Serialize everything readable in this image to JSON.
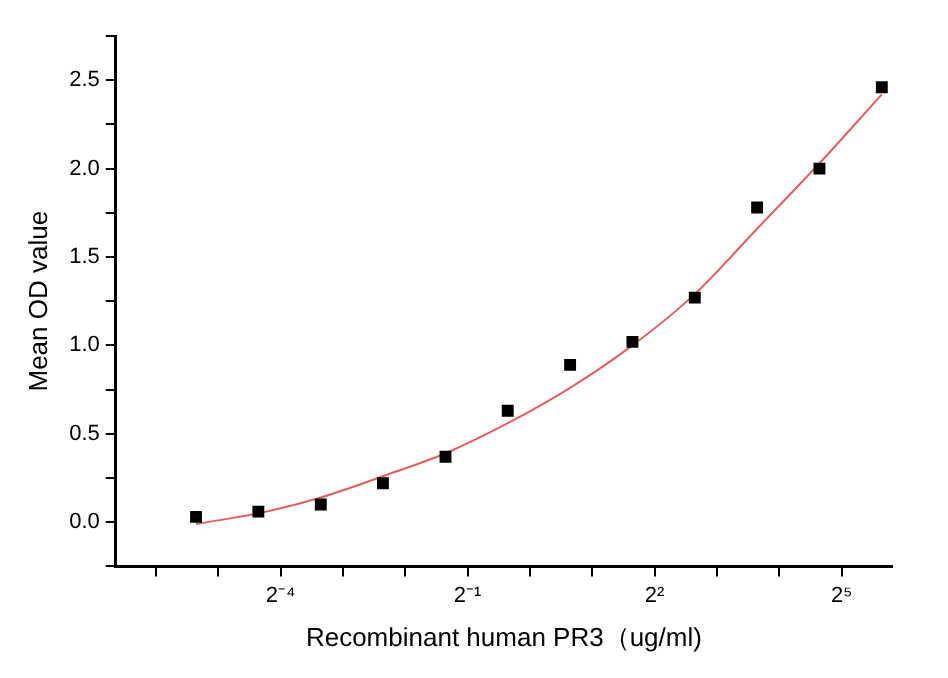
{
  "chart_data": {
    "type": "scatter",
    "xlabel": "Recombinant human PR3（ug/ml)",
    "ylabel": "Mean OD value",
    "log": "x",
    "grid": false,
    "legend": false,
    "marker": "square",
    "xlim": [
      0.01,
      56
    ],
    "xticks": [
      {
        "value": 0.015625,
        "label": null
      },
      {
        "value": 0.03125,
        "label": null
      },
      {
        "value": 0.0625,
        "label": "2⁻⁴"
      },
      {
        "value": 0.125,
        "label": null
      },
      {
        "value": 0.25,
        "label": null
      },
      {
        "value": 0.5,
        "label": "2⁻¹"
      },
      {
        "value": 1,
        "label": null
      },
      {
        "value": 2,
        "label": null
      },
      {
        "value": 4,
        "label": "2²"
      },
      {
        "value": 8,
        "label": null
      },
      {
        "value": 16,
        "label": null
      },
      {
        "value": 32,
        "label": "2⁵"
      }
    ],
    "ylim": [
      -0.25,
      2.75
    ],
    "yticks": [
      {
        "value": -0.25,
        "label": null
      },
      {
        "value": 0,
        "label": "0.0"
      },
      {
        "value": 0.25,
        "label": null
      },
      0.5,
      {
        "value": 0.75,
        "label": null
      },
      {
        "value": 1,
        "label": "1.0"
      },
      {
        "value": 1.25,
        "label": null
      },
      1.5,
      {
        "value": 1.75,
        "label": null
      },
      {
        "value": 2,
        "label": "2.0"
      },
      {
        "value": 2.25,
        "label": null
      },
      2.5,
      {
        "value": 2.75,
        "label": null
      }
    ],
    "series": [
      {
        "type": "scatter",
        "color": "#000000",
        "x": [
          0.0244,
          0.0488,
          0.0977,
          0.195,
          0.391,
          0.781,
          1.5625,
          3.125,
          6.25,
          12.5,
          25,
          50
        ],
        "values": [
          0.03,
          0.06,
          0.1,
          0.22,
          0.37,
          0.63,
          0.89,
          1.02,
          1.27,
          1.78,
          2.0,
          2.46
        ]
      },
      {
        "type": "line",
        "color": "#e06060",
        "marker": "none",
        "x": [
          0.0244,
          0.0488,
          0.0977,
          0.195,
          0.391,
          0.781,
          1.5625,
          3.125,
          6.25,
          12.5,
          25,
          50
        ],
        "values": [
          -0.01,
          0.05,
          0.14,
          0.26,
          0.39,
          0.56,
          0.76,
          1.0,
          1.29,
          1.66,
          2.03,
          2.42
        ]
      }
    ]
  }
}
